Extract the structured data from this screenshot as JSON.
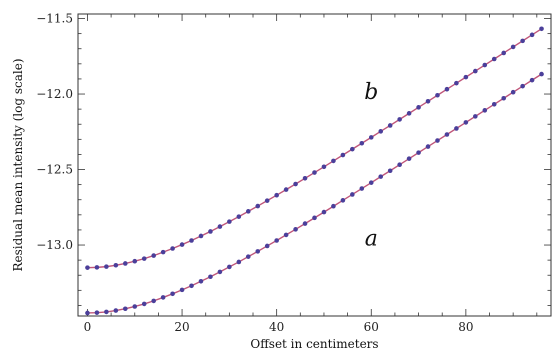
{
  "chart_data": {
    "type": "line",
    "xlabel": "Offset in centimeters",
    "ylabel": "Residual mean intensity (log scale)",
    "xlim": [
      -2,
      98
    ],
    "ylim": [
      -13.47,
      -11.47
    ],
    "xticks": [
      0,
      20,
      40,
      60,
      80
    ],
    "xtick_labels": [
      "0",
      "20",
      "40",
      "60",
      "80"
    ],
    "yticks": [
      -11.5,
      -12.0,
      -12.5,
      -13.0
    ],
    "ytick_labels": [
      "−11.5",
      "−12.0",
      "−12.5",
      "−13.0"
    ],
    "grid": false,
    "marker_color": "#4b3f9a",
    "line_color": "#c0567a",
    "x": [
      0,
      2,
      4,
      6,
      8,
      10,
      12,
      14,
      16,
      18,
      20,
      22,
      24,
      26,
      28,
      30,
      32,
      34,
      36,
      38,
      40,
      42,
      44,
      46,
      48,
      50,
      52,
      54,
      56,
      58,
      60,
      62,
      64,
      66,
      68,
      70,
      72,
      74,
      76,
      78,
      80,
      82,
      84,
      86,
      88,
      90,
      92,
      94,
      96
    ],
    "series": [
      {
        "values": [
          -13.45,
          -13.448,
          -13.443,
          -13.434,
          -13.422,
          -13.407,
          -13.39,
          -13.37,
          -13.347,
          -13.323,
          -13.297,
          -13.27,
          -13.24,
          -13.21,
          -13.178,
          -13.145,
          -13.112,
          -13.077,
          -13.042,
          -13.006,
          -12.97,
          -12.933,
          -12.896,
          -12.858,
          -12.82,
          -12.782,
          -12.743,
          -12.704,
          -12.665,
          -12.626,
          -12.587,
          -12.547,
          -12.508,
          -12.468,
          -12.428,
          -12.388,
          -12.348,
          -12.308,
          -12.268,
          -12.228,
          -12.188,
          -12.148,
          -12.108,
          -12.068,
          -12.028,
          -11.988,
          -11.948,
          -11.908,
          -11.868
        ]
      },
      {
        "values": [
          -13.15,
          -13.148,
          -13.143,
          -13.134,
          -13.122,
          -13.107,
          -13.09,
          -13.07,
          -13.047,
          -13.023,
          -12.997,
          -12.97,
          -12.94,
          -12.91,
          -12.878,
          -12.845,
          -12.812,
          -12.777,
          -12.742,
          -12.706,
          -12.67,
          -12.633,
          -12.596,
          -12.558,
          -12.52,
          -12.482,
          -12.443,
          -12.404,
          -12.365,
          -12.326,
          -12.287,
          -12.247,
          -12.208,
          -12.168,
          -12.128,
          -12.088,
          -12.048,
          -12.008,
          -11.968,
          -11.928,
          -11.888,
          -11.848,
          -11.808,
          -11.768,
          -11.728,
          -11.688,
          -11.648,
          -11.608,
          -11.568
        ]
      }
    ],
    "annotations": [
      {
        "text": "a",
        "x": 60,
        "y": -12.95
      },
      {
        "text": "b",
        "x": 60,
        "y": -11.98
      }
    ]
  }
}
